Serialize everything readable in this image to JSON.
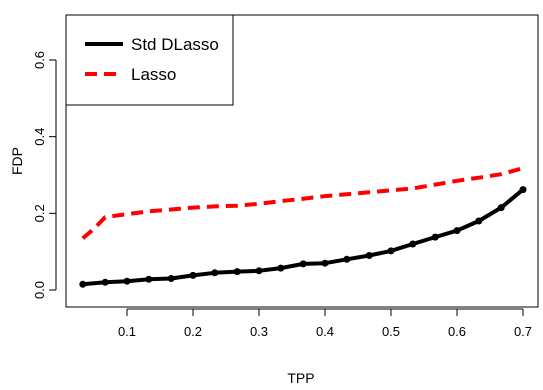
{
  "chart_data": {
    "type": "line",
    "title": "",
    "xlabel": "TPP",
    "ylabel": "FDP",
    "xlim": [
      0.03,
      0.7
    ],
    "ylim": [
      0.0,
      0.7
    ],
    "xticks": [
      "0.1",
      "0.2",
      "0.3",
      "0.4",
      "0.5",
      "0.6",
      "0.7"
    ],
    "yticks": [
      "0.0",
      "0.2",
      "0.4",
      "0.6"
    ],
    "legend_position": "top-left",
    "grid": false,
    "series": [
      {
        "name": "Std DLasso",
        "color": "#000000",
        "style": "solid-with-points",
        "x": [
          0.033,
          0.067,
          0.1,
          0.133,
          0.167,
          0.2,
          0.233,
          0.267,
          0.3,
          0.333,
          0.367,
          0.4,
          0.433,
          0.467,
          0.5,
          0.533,
          0.567,
          0.6,
          0.633,
          0.667,
          0.7
        ],
        "y": [
          0.015,
          0.02,
          0.023,
          0.028,
          0.03,
          0.038,
          0.045,
          0.048,
          0.05,
          0.057,
          0.068,
          0.07,
          0.08,
          0.09,
          0.102,
          0.12,
          0.138,
          0.155,
          0.18,
          0.215,
          0.262
        ]
      },
      {
        "name": "Lasso",
        "color": "#ff0000",
        "style": "dashed",
        "x": [
          0.033,
          0.05,
          0.067,
          0.1,
          0.133,
          0.167,
          0.2,
          0.233,
          0.267,
          0.3,
          0.333,
          0.367,
          0.4,
          0.433,
          0.467,
          0.5,
          0.533,
          0.567,
          0.6,
          0.633,
          0.667,
          0.7
        ],
        "y": [
          0.135,
          0.16,
          0.19,
          0.198,
          0.205,
          0.21,
          0.215,
          0.218,
          0.22,
          0.225,
          0.232,
          0.238,
          0.245,
          0.25,
          0.255,
          0.26,
          0.265,
          0.275,
          0.285,
          0.293,
          0.302,
          0.318
        ]
      }
    ]
  }
}
